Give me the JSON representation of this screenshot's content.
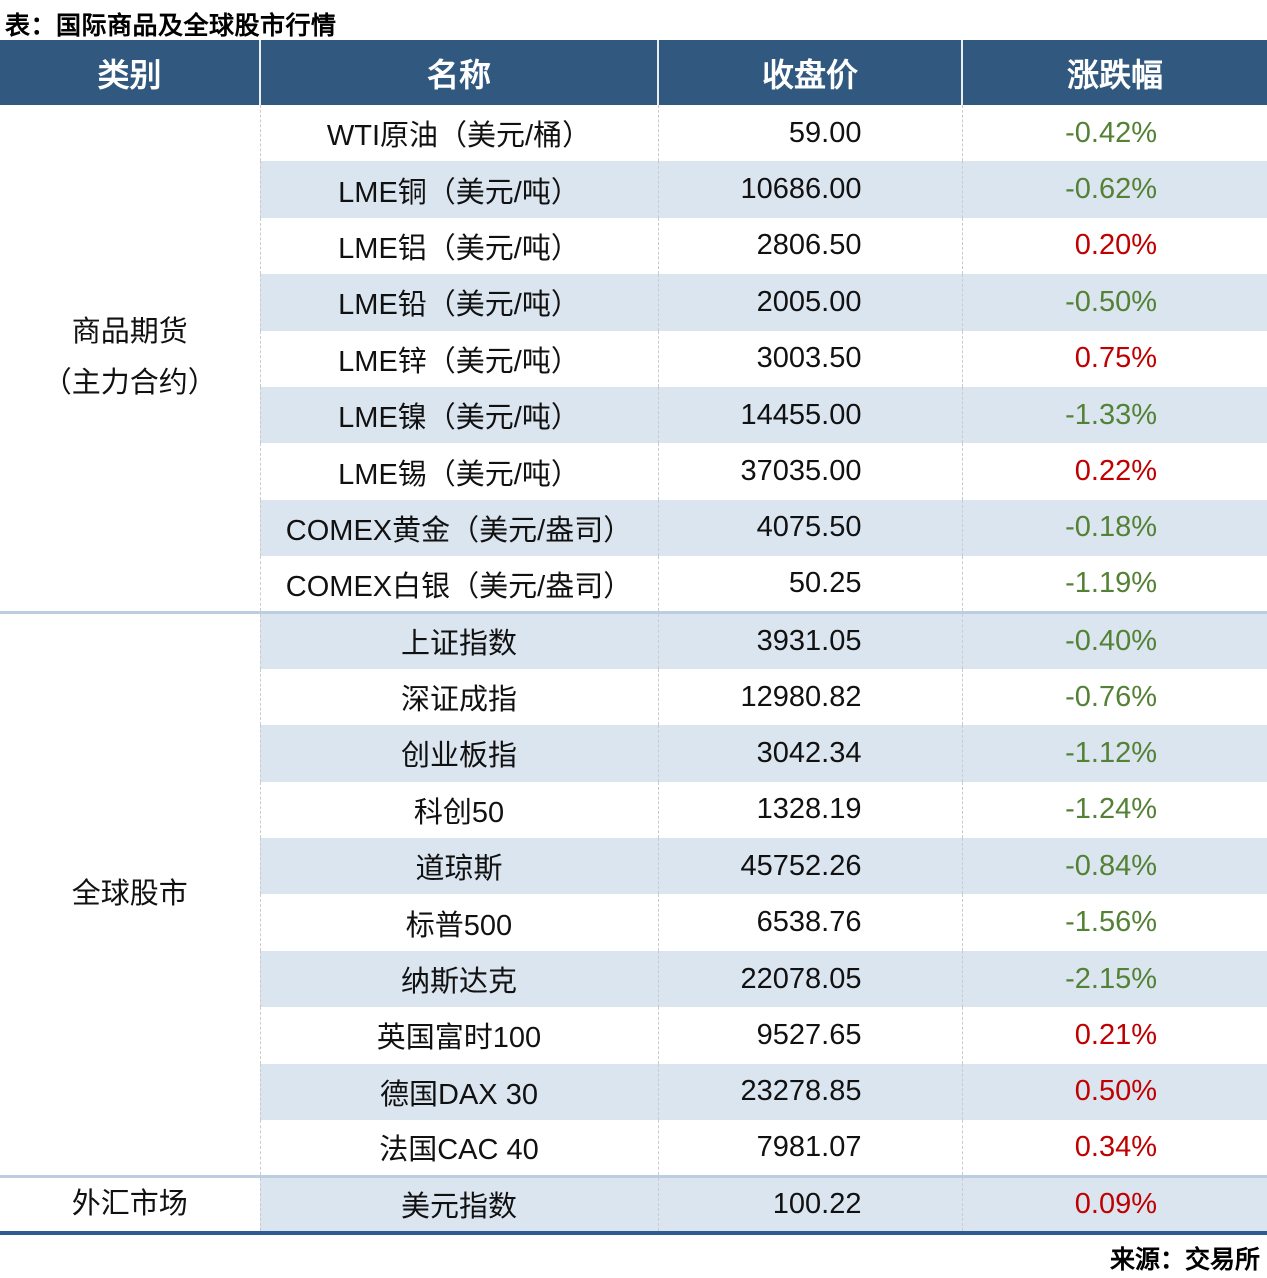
{
  "title": "表：国际商品及全球股市行情",
  "source": "来源：交易所",
  "colors": {
    "header_bg": "#31587F",
    "row_alt": "#DBE5EF",
    "up_red": "#C00000",
    "down_green": "#538135",
    "bottom_border_blue": "#2F5A94",
    "group_separator": "#BCCDE2"
  },
  "table": {
    "headers": [
      "类别",
      "名称",
      "收盘价",
      "涨跌幅"
    ],
    "groups": [
      {
        "category_lines": [
          "商品期货",
          "（主力合约）"
        ],
        "rows": [
          {
            "name": "WTI原油（美元/桶）",
            "close": "59.00",
            "change": "-0.42%"
          },
          {
            "name": "LME铜（美元/吨）",
            "close": "10686.00",
            "change": "-0.62%"
          },
          {
            "name": "LME铝（美元/吨）",
            "close": "2806.50",
            "change": "0.20%"
          },
          {
            "name": "LME铅（美元/吨）",
            "close": "2005.00",
            "change": "-0.50%"
          },
          {
            "name": "LME锌（美元/吨）",
            "close": "3003.50",
            "change": "0.75%"
          },
          {
            "name": "LME镍（美元/吨）",
            "close": "14455.00",
            "change": "-1.33%"
          },
          {
            "name": "LME锡（美元/吨）",
            "close": "37035.00",
            "change": "0.22%"
          },
          {
            "name": "COMEX黄金（美元/盎司）",
            "close": "4075.50",
            "change": "-0.18%"
          },
          {
            "name": "COMEX白银（美元/盎司）",
            "close": "50.25",
            "change": "-1.19%"
          }
        ]
      },
      {
        "category_lines": [
          "全球股市"
        ],
        "rows": [
          {
            "name": "上证指数",
            "close": "3931.05",
            "change": "-0.40%"
          },
          {
            "name": "深证成指",
            "close": "12980.82",
            "change": "-0.76%"
          },
          {
            "name": "创业板指",
            "close": "3042.34",
            "change": "-1.12%"
          },
          {
            "name": "科创50",
            "close": "1328.19",
            "change": "-1.24%"
          },
          {
            "name": "道琼斯",
            "close": "45752.26",
            "change": "-0.84%"
          },
          {
            "name": "标普500",
            "close": "6538.76",
            "change": "-1.56%"
          },
          {
            "name": "纳斯达克",
            "close": "22078.05",
            "change": "-2.15%"
          },
          {
            "name": "英国富时100",
            "close": "9527.65",
            "change": "0.21%"
          },
          {
            "name": "德国DAX 30",
            "close": "23278.85",
            "change": "0.50%"
          },
          {
            "name": "法国CAC 40",
            "close": "7981.07",
            "change": "0.34%"
          }
        ]
      },
      {
        "category_lines": [
          "外汇市场"
        ],
        "rows": [
          {
            "name": "美元指数",
            "close": "100.22",
            "change": "0.09%"
          }
        ]
      }
    ]
  }
}
